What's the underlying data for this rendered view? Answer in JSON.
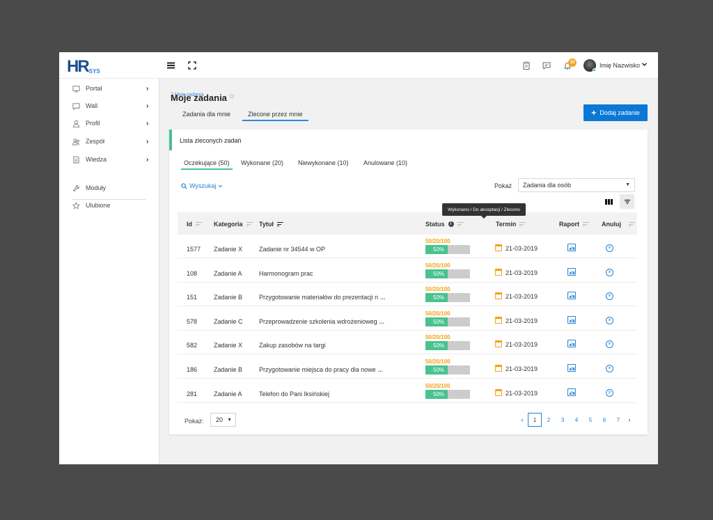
{
  "brand": {
    "logo_main": "HR",
    "logo_sub": "SYS",
    "accent": "#0b78d6",
    "success": "#48c28f",
    "warning": "#f2a20c"
  },
  "topbar": {
    "icons": [
      "menu-icon",
      "fullscreen-icon",
      "clipboard-icon",
      "chat-icon",
      "bell-icon"
    ],
    "notifications_count": "10",
    "user_name": "Imię Nazwisko"
  },
  "sidebar": {
    "items": [
      {
        "label": "Portal",
        "icon": "monitor-icon"
      },
      {
        "label": "Wall",
        "icon": "chat-icon"
      },
      {
        "label": "Profil",
        "icon": "user-icon"
      },
      {
        "label": "Zespół",
        "icon": "team-icon"
      },
      {
        "label": "Wiedza",
        "icon": "document-icon"
      }
    ],
    "secondary": [
      {
        "label": "Moduły",
        "icon": "wrench-icon"
      },
      {
        "label": "Ulubione",
        "icon": "star-icon"
      }
    ]
  },
  "page": {
    "title": "Moje zadania",
    "breadcrumb_overlay": "ᵀ  Moje zadania",
    "tabs": [
      "Zadania dla mnie",
      "Zlecone przez mnie"
    ],
    "add_button": "Dodaj zadanie"
  },
  "card": {
    "title": "Lista zleconych zadań",
    "tabs": [
      "Oczekujące (50)",
      "Wykonane (20)",
      "Niewykonane (10)",
      "Anulowane (10)"
    ],
    "search_label": "Wyszukaj",
    "show_label": "Pokaż",
    "show_value": "Zadania dla osób",
    "tooltip": "Wykonano / Do akceptacji / Zlecono"
  },
  "table": {
    "headers": {
      "id": "Id",
      "category": "Kategoria",
      "title": "Tytuł",
      "status": "Status",
      "deadline": "Termin",
      "report": "Raport",
      "cancel": "Anuluj"
    },
    "rows": [
      {
        "id": "1577",
        "category": "Zadanie X",
        "title": "Zadanie nr 34544 w OP",
        "more": "",
        "status_text": "50/20/100",
        "progress": 50,
        "progress_label": "50%",
        "date": "21-03-2019"
      },
      {
        "id": "108",
        "category": "Zadanie A",
        "title": "Harmonogram prac",
        "more": "",
        "status_text": "50/20/100",
        "progress": 50,
        "progress_label": "50%",
        "date": "21-03-2019"
      },
      {
        "id": "151",
        "category": "Zadanie B",
        "title": "Przygotowanie materiałów do prezentacji n",
        "more": "...",
        "status_text": "50/20/100",
        "progress": 50,
        "progress_label": "50%",
        "date": "21-03-2019"
      },
      {
        "id": "578",
        "category": "Zadanie C",
        "title": "Przeprowadzenie szkolenia wdrożenioweg",
        "more": "...",
        "status_text": "50/20/100",
        "progress": 50,
        "progress_label": "50%",
        "date": "21-03-2019"
      },
      {
        "id": "582",
        "category": "Zadanie X",
        "title": "Zakup zasobów na targi",
        "more": "",
        "status_text": "50/20/100",
        "progress": 50,
        "progress_label": "50%",
        "date": "21-03-2019"
      },
      {
        "id": "186",
        "category": "Zadanie B",
        "title": "Przygotowanie miejsca do pracy dla nowe",
        "more": "...",
        "status_text": "50/20/100",
        "progress": 50,
        "progress_label": "50%",
        "date": "21-03-2019"
      },
      {
        "id": "281",
        "category": "Zadanie A",
        "title": "Telefon do Pani Iksińskiej",
        "more": "",
        "status_text": "50/20/100",
        "progress": 50,
        "progress_label": "50%",
        "date": "21-03-2019"
      }
    ]
  },
  "footer": {
    "page_size_label": "Pokaż:",
    "page_size": "20",
    "pages": [
      "1",
      "2",
      "3",
      "4",
      "5",
      "6",
      "7"
    ],
    "current_page": "1",
    "prev": "‹",
    "next": "›"
  }
}
